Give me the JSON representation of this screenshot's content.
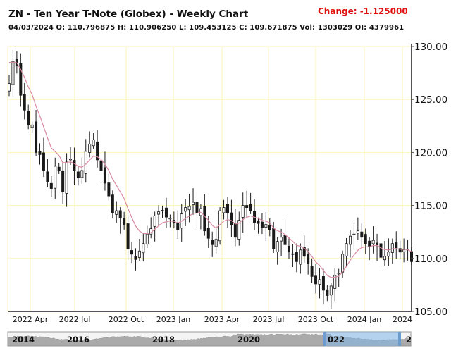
{
  "header": {
    "title": "ZN - Ten Year T-Note (Globex) - Weekly Chart",
    "change": "Change: -1.125000",
    "ohlc": "04/03/2024 O: 110.796875 H: 110.906250 L: 109.453125 C: 109.671875 Vol: 1303029 OI: 4379961"
  },
  "colors": {
    "gridline": "#fbf5b8",
    "candle": "#1a1a1a",
    "moving_average": "#d88aa0",
    "navigator_fill": "#aaaaaa",
    "navigator_highlight": "#7fb6ea",
    "change_text": "#e01010"
  },
  "navigator": {
    "labels": [
      "2014",
      "2016",
      "2018",
      "2020",
      "022",
      "2"
    ]
  },
  "chart_data": {
    "type": "candlestick",
    "title": "ZN - Ten Year T-Note (Globex) - Weekly Chart",
    "x_tick_labels": [
      "2022 Apr",
      "2022 Jul",
      "2022 Oct",
      "2023 Jan",
      "2023 Apr",
      "2023 Jul",
      "2023 Oct",
      "2024 Jan",
      "2024"
    ],
    "y_tick_labels": [
      "105.00",
      "110.00",
      "115.00",
      "120.00",
      "125.00",
      "130.00"
    ],
    "ylim": [
      105,
      130
    ],
    "grid": true,
    "series": [
      {
        "values": [
          126.5,
          128.6,
          128.2,
          125.4,
          124.0,
          122.6,
          122.6,
          120.0,
          119.8,
          118.3,
          117.2,
          116.6,
          118.7,
          118.3,
          116.3,
          119.1,
          119.4,
          118.3,
          117.6,
          118.3,
          120.1,
          120.8,
          121.2,
          119.3,
          118.3,
          117.1,
          115.9,
          114.3,
          114.5,
          113.8,
          113.2,
          110.9,
          110.4,
          109.9,
          110.7,
          111.4,
          112.3,
          112.8,
          114.0,
          114.4,
          114.5,
          113.9,
          113.8,
          113.4,
          112.7,
          114.2,
          114.8,
          114.9,
          115.3,
          114.3,
          114.7,
          112.6,
          111.9,
          111.3,
          111.8,
          114.5,
          114.8,
          114.3,
          113.2,
          112.0,
          113.6,
          115.0,
          114.8,
          114.5,
          113.4,
          113.3,
          112.9,
          113.2,
          112.7,
          110.9,
          111.6,
          112.0,
          111.3,
          110.6,
          110.4,
          109.7,
          110.8,
          110.2,
          109.5,
          108.3,
          107.6,
          108.0,
          107.0,
          106.5,
          107.4,
          108.4,
          108.6,
          110.4,
          111.4,
          112.1,
          112.3,
          112.6,
          112.0,
          111.4,
          111.1,
          111.7,
          111.2,
          110.1,
          110.2,
          110.6,
          111.4,
          111.0,
          110.6,
          110.8,
          110.8,
          109.7
        ]
      }
    ],
    "moving_average_note": "moving average line overlaid on price series"
  }
}
